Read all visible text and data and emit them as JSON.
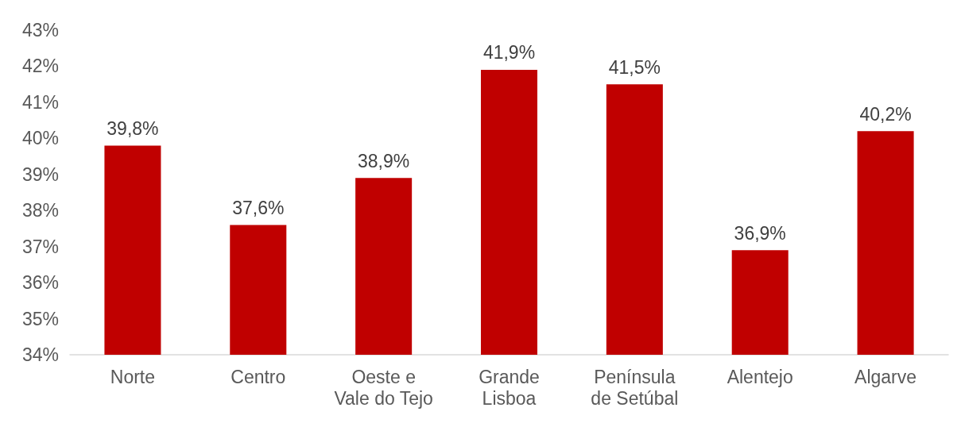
{
  "chart_data": {
    "type": "bar",
    "categories": [
      "Norte",
      "Centro",
      "Oeste e\nVale do Tejo",
      "Grande\nLisboa",
      "Península\nde Setúbal",
      "Alentejo",
      "Algarve"
    ],
    "values": [
      39.8,
      37.6,
      38.9,
      41.9,
      41.5,
      36.9,
      40.2
    ],
    "value_labels": [
      "39,8%",
      "37,6%",
      "38,9%",
      "41,9%",
      "41,5%",
      "36,9%",
      "40,2%"
    ],
    "color": "#c00000",
    "ylim": [
      34,
      43
    ],
    "yticks": [
      {
        "value": 34,
        "label": "34%"
      },
      {
        "value": 35,
        "label": "35%"
      },
      {
        "value": 36,
        "label": "36%"
      },
      {
        "value": 37,
        "label": "37%"
      },
      {
        "value": 38,
        "label": "38%"
      },
      {
        "value": 39,
        "label": "39%"
      },
      {
        "value": 40,
        "label": "40%"
      },
      {
        "value": 41,
        "label": "41%"
      },
      {
        "value": 42,
        "label": "42%"
      },
      {
        "value": 43,
        "label": "43%"
      }
    ],
    "grid": false
  }
}
